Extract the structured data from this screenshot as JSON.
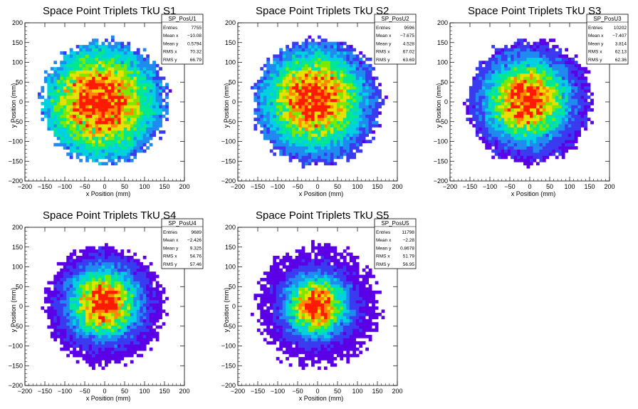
{
  "chart_data": [
    {
      "type": "heatmap",
      "title": "Space Point Triplets TkU S1",
      "xlabel": "x Position (mm)",
      "ylabel": "y Position (mm)",
      "xlim": [
        -200,
        200
      ],
      "ylim": [
        -200,
        200
      ],
      "xticks": [
        -200,
        -150,
        -100,
        -50,
        0,
        50,
        100,
        150,
        200
      ],
      "yticks": [
        -200,
        -150,
        -100,
        -50,
        0,
        50,
        100,
        150,
        200
      ],
      "stats": {
        "name": "SP_PosU1",
        "entries_label": "Entries",
        "entries": "7755",
        "mean_x_label": "Mean x",
        "mean_x": "−10.08",
        "mean_y_label": "Mean y",
        "mean_y": "0.5794",
        "rms_x_label": "RMS x",
        "rms_x": "70.32",
        "rms_y_label": "RMS y",
        "rms_y": "66.79"
      },
      "bins": 50,
      "radius": 160,
      "sigma": 95,
      "center": [
        -10.08,
        0.58
      ],
      "seed": 11
    },
    {
      "type": "heatmap",
      "title": "Space Point Triplets TkU S2",
      "xlabel": "x Position (mm)",
      "ylabel": "y Position (mm)",
      "xlim": [
        -200,
        200
      ],
      "ylim": [
        -200,
        200
      ],
      "xticks": [
        -200,
        -150,
        -100,
        -50,
        0,
        50,
        100,
        150,
        200
      ],
      "yticks": [
        -200,
        -150,
        -100,
        -50,
        0,
        50,
        100,
        150,
        200
      ],
      "stats": {
        "name": "SP_PosU2",
        "entries_label": "Entries",
        "entries": "9596",
        "mean_x_label": "Mean x",
        "mean_x": "−7.675",
        "mean_y_label": "Mean y",
        "mean_y": "4.528",
        "rms_x_label": "RMS x",
        "rms_x": "67.02",
        "rms_y_label": "RMS y",
        "rms_y": "63.69"
      },
      "bins": 50,
      "radius": 165,
      "sigma": 85,
      "center": [
        -7.68,
        4.53
      ],
      "seed": 23
    },
    {
      "type": "heatmap",
      "title": "Space Point Triplets TkU S3",
      "xlabel": "x Position (mm)",
      "ylabel": "y Position (mm)",
      "xlim": [
        -200,
        200
      ],
      "ylim": [
        -200,
        200
      ],
      "xticks": [
        -200,
        -150,
        -100,
        -50,
        0,
        50,
        100,
        150,
        200
      ],
      "yticks": [
        -200,
        -150,
        -100,
        -50,
        0,
        50,
        100,
        150,
        200
      ],
      "stats": {
        "name": "SP_PosU3",
        "entries_label": "Entries",
        "entries": "10202",
        "mean_x_label": "Mean x",
        "mean_x": "−7.407",
        "mean_y_label": "Mean y",
        "mean_y": "3.814",
        "rms_x_label": "RMS x",
        "rms_x": "62.13",
        "rms_y_label": "RMS y",
        "rms_y": "62.36"
      },
      "bins": 50,
      "radius": 160,
      "sigma": 70,
      "center": [
        -7.41,
        3.81
      ],
      "seed": 37
    },
    {
      "type": "heatmap",
      "title": "Space Point Triplets TkU S4",
      "xlabel": "x Position (mm)",
      "ylabel": "y Position (mm)",
      "xlim": [
        -200,
        200
      ],
      "ylim": [
        -200,
        200
      ],
      "xticks": [
        -200,
        -150,
        -100,
        -50,
        0,
        50,
        100,
        150,
        200
      ],
      "yticks": [
        -200,
        -150,
        -100,
        -50,
        0,
        50,
        100,
        150,
        200
      ],
      "stats": {
        "name": "SP_PosU4",
        "entries_label": "Entries",
        "entries": "9689",
        "mean_x_label": "Mean x",
        "mean_x": "−2.426",
        "mean_y_label": "Mean y",
        "mean_y": "9.325",
        "rms_x_label": "RMS x",
        "rms_x": "54.76",
        "rms_y_label": "RMS y",
        "rms_y": "57.46"
      },
      "bins": 50,
      "radius": 155,
      "sigma": 58,
      "center": [
        -2.43,
        9.33
      ],
      "seed": 41
    },
    {
      "type": "heatmap",
      "title": "Space Point Triplets TkU S5",
      "xlabel": "x Position (mm)",
      "ylabel": "y Position (mm)",
      "xlim": [
        -200,
        200
      ],
      "ylim": [
        -200,
        200
      ],
      "xticks": [
        -200,
        -150,
        -100,
        -50,
        0,
        50,
        100,
        150,
        200
      ],
      "yticks": [
        -200,
        -150,
        -100,
        -50,
        0,
        50,
        100,
        150,
        200
      ],
      "stats": {
        "name": "SP_PosU5",
        "entries_label": "Entries",
        "entries": "11798",
        "mean_x_label": "Mean x",
        "mean_x": "−2.28",
        "mean_y_label": "Mean y",
        "mean_y": "0.8678",
        "rms_x_label": "RMS x",
        "rms_x": "51.79",
        "rms_y_label": "RMS y",
        "rms_y": "56.95"
      },
      "bins": 50,
      "radius": 160,
      "sigma": 52,
      "center": [
        -2.28,
        0.87
      ],
      "seed": 53
    }
  ],
  "colors": {
    "background": "#ffffff",
    "axis": "#000000",
    "palette": [
      "#5b00e6",
      "#3a3af0",
      "#1f8af0",
      "#00d0e0",
      "#00e890",
      "#7ae800",
      "#e8e000",
      "#ff8800",
      "#ff1a00"
    ]
  }
}
